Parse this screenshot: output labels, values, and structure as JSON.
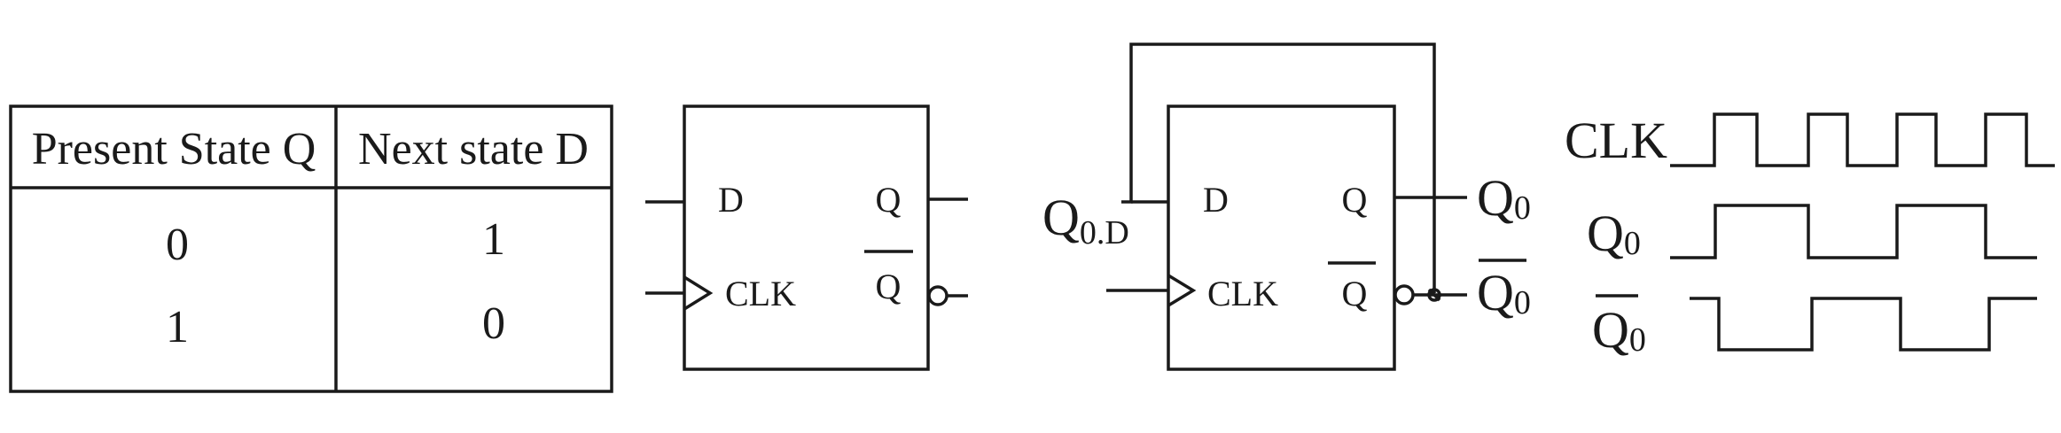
{
  "truth_table": {
    "headers": [
      "Present State Q",
      "Next state D"
    ],
    "rows": [
      [
        "0",
        "1"
      ],
      [
        "1",
        "0"
      ]
    ]
  },
  "flipflop_a": {
    "pin_d": "D",
    "pin_q": "Q",
    "pin_clk": "CLK",
    "pin_qbar": "Q"
  },
  "flipflop_b": {
    "pin_d": "D",
    "pin_q": "Q",
    "pin_clk": "CLK",
    "pin_qbar": "Q",
    "input_label_main": "Q",
    "input_label_sub": "0.D",
    "output_q_main": "Q",
    "output_q_sub": "0",
    "output_qbar_main": "Q",
    "output_qbar_sub": "0"
  },
  "timing": {
    "clk_label": "CLK",
    "q0_label_main": "Q",
    "q0_label_sub": "0",
    "q0bar_label_main": "Q",
    "q0bar_label_sub": "0"
  }
}
